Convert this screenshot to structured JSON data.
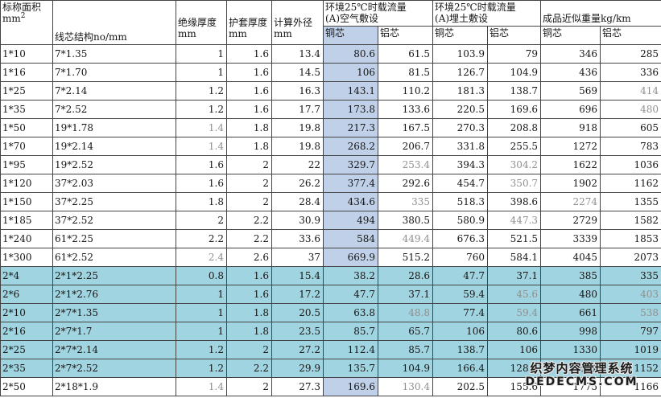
{
  "table": {
    "fields": [
      "area",
      "structure",
      "insulation",
      "sheath",
      "od",
      "air_cu",
      "air_al",
      "ground_cu",
      "ground_al",
      "wt_cu",
      "wt_al"
    ],
    "headers": {
      "area_line1": "标称面积",
      "area_unit": "mm",
      "area_sup": "2",
      "structure": "线芯结构no/mm",
      "insulation_line1": "绝缘厚度",
      "insulation_line2": "mm",
      "sheath_line1": "护套厚度",
      "sheath_line2": "mm",
      "od_line1": "计算外径",
      "od_line2": "mm",
      "group_air_line1": "环境25℃时载流量",
      "group_air_line2": "(A)空气敷设",
      "group_ground_line1": "环境25℃时载流量",
      "group_ground_line2": "(A)埋土敷设",
      "group_weight": "成品近似重量kg/km",
      "sub_copper": "铜芯",
      "sub_aluminum": "铝芯"
    },
    "rows": [
      {
        "area": "1*10",
        "structure": "7*1.35",
        "insulation": "1",
        "sheath": "1.6",
        "od": "13.4",
        "air_cu": "80.6",
        "air_al": "61.5",
        "ground_cu": "103.9",
        "ground_al": "79",
        "wt_cu": "346",
        "wt_al": "285",
        "highlight": false,
        "muted": []
      },
      {
        "area": "1*16",
        "structure": "7*1.70",
        "insulation": "1",
        "sheath": "1.6",
        "od": "14.5",
        "air_cu": "106",
        "air_al": "81.5",
        "ground_cu": "126.7",
        "ground_al": "104.9",
        "wt_cu": "436",
        "wt_al": "336",
        "highlight": false,
        "muted": []
      },
      {
        "area": "1*25",
        "structure": "7*2.14",
        "insulation": "1.2",
        "sheath": "1.6",
        "od": "16.3",
        "air_cu": "143.1",
        "air_al": "110.2",
        "ground_cu": "181.3",
        "ground_al": "138.7",
        "wt_cu": "569",
        "wt_al": "414",
        "highlight": false,
        "muted": [
          "wt_al"
        ]
      },
      {
        "area": "1*35",
        "structure": "7*2.52",
        "insulation": "1.2",
        "sheath": "1.6",
        "od": "17.7",
        "air_cu": "173.8",
        "air_al": "133.6",
        "ground_cu": "220.5",
        "ground_al": "169.6",
        "wt_cu": "696",
        "wt_al": "480",
        "highlight": false,
        "muted": [
          "wt_al"
        ]
      },
      {
        "area": "1*50",
        "structure": "19*1.78",
        "insulation": "1.4",
        "sheath": "1.8",
        "od": "19.8",
        "air_cu": "217.3",
        "air_al": "167.5",
        "ground_cu": "270.3",
        "ground_al": "208.8",
        "wt_cu": "918",
        "wt_al": "605",
        "highlight": false,
        "muted": [
          "insulation"
        ]
      },
      {
        "area": "1*70",
        "structure": "19*2.14",
        "insulation": "1.4",
        "sheath": "1.8",
        "od": "19.8",
        "air_cu": "268.2",
        "air_al": "206.7",
        "ground_cu": "331.8",
        "ground_al": "255.5",
        "wt_cu": "1272",
        "wt_al": "783",
        "highlight": false,
        "muted": [
          "insulation"
        ]
      },
      {
        "area": "1*95",
        "structure": "19*2.52",
        "insulation": "1.6",
        "sheath": "2",
        "od": "22",
        "air_cu": "329.7",
        "air_al": "253.4",
        "ground_cu": "394.3",
        "ground_al": "304.2",
        "wt_cu": "1622",
        "wt_al": "1036",
        "highlight": false,
        "muted": [
          "air_al",
          "ground_al"
        ]
      },
      {
        "area": "1*120",
        "structure": "37*2.03",
        "insulation": "1.6",
        "sheath": "2",
        "od": "26.2",
        "air_cu": "377.4",
        "air_al": "292.6",
        "ground_cu": "454.7",
        "ground_al": "350.7",
        "wt_cu": "1902",
        "wt_al": "1162",
        "highlight": false,
        "muted": [
          "ground_al"
        ]
      },
      {
        "area": "1*150",
        "structure": "37*2.25",
        "insulation": "1.8",
        "sheath": "2",
        "od": "28.4",
        "air_cu": "434.6",
        "air_al": "335",
        "ground_cu": "518.3",
        "ground_al": "398.6",
        "wt_cu": "2274",
        "wt_al": "1355",
        "highlight": false,
        "muted": [
          "air_al",
          "wt_cu"
        ]
      },
      {
        "area": "1*185",
        "structure": "37*2.52",
        "insulation": "2",
        "sheath": "2.2",
        "od": "30.9",
        "air_cu": "494",
        "air_al": "380.5",
        "ground_cu": "580.9",
        "ground_al": "447.3",
        "wt_cu": "2729",
        "wt_al": "1582",
        "highlight": false,
        "muted": [
          "ground_al"
        ]
      },
      {
        "area": "1*240",
        "structure": "61*2.25",
        "insulation": "2.2",
        "sheath": "2.2",
        "od": "33.6",
        "air_cu": "584",
        "air_al": "449.4",
        "ground_cu": "676.3",
        "ground_al": "521.5",
        "wt_cu": "3339",
        "wt_al": "1853",
        "highlight": false,
        "muted": [
          "air_al"
        ]
      },
      {
        "area": "1*300",
        "structure": "61*2.52",
        "insulation": "2.4",
        "sheath": "2.6",
        "od": "37",
        "air_cu": "669.9",
        "air_al": "515.2",
        "ground_cu": "760",
        "ground_al": "584.1",
        "wt_cu": "4045",
        "wt_al": "2073",
        "highlight": false,
        "muted": [
          "insulation"
        ]
      },
      {
        "area": "2*4",
        "structure": "2*1*2.25",
        "insulation": "0.8",
        "sheath": "1.6",
        "od": "15.4",
        "air_cu": "38.2",
        "air_al": "28.6",
        "ground_cu": "47.7",
        "ground_al": "37.1",
        "wt_cu": "385",
        "wt_al": "335",
        "highlight": true,
        "muted": []
      },
      {
        "area": "2*6",
        "structure": "2*1*2.76",
        "insulation": "1",
        "sheath": "1.6",
        "od": "17.2",
        "air_cu": "47.7",
        "air_al": "37.1",
        "ground_cu": "59.4",
        "ground_al": "45.6",
        "wt_cu": "480",
        "wt_al": "403",
        "highlight": true,
        "muted": [
          "ground_al",
          "wt_al"
        ]
      },
      {
        "area": "2*10",
        "structure": "2*7*1.35",
        "insulation": "1",
        "sheath": "1.8",
        "od": "20.5",
        "air_cu": "63.8",
        "air_al": "48.8",
        "ground_cu": "77.4",
        "ground_al": "59.4",
        "wt_cu": "661",
        "wt_al": "538",
        "highlight": true,
        "muted": [
          "air_al",
          "ground_al",
          "wt_al"
        ]
      },
      {
        "area": "2*16",
        "structure": "2*7*1.7",
        "insulation": "1",
        "sheath": "1.8",
        "od": "23.5",
        "air_cu": "85.7",
        "air_al": "65.7",
        "ground_cu": "106",
        "ground_al": "80.6",
        "wt_cu": "998",
        "wt_al": "797",
        "highlight": true,
        "muted": []
      },
      {
        "area": "2*25",
        "structure": "2*7*2.14",
        "insulation": "1.2",
        "sheath": "2",
        "od": "27.2",
        "air_cu": "112.4",
        "air_al": "85.7",
        "ground_cu": "138.7",
        "ground_al": "106",
        "wt_cu": "1330",
        "wt_al": "1019",
        "highlight": true,
        "muted": []
      },
      {
        "area": "2*35",
        "structure": "2*7*2.52",
        "insulation": "1.2",
        "sheath": "2.2",
        "od": "29.9",
        "air_cu": "135.7",
        "air_al": "104.9",
        "ground_cu": "166.4",
        "ground_al": "128.3",
        "wt_cu": "1601",
        "wt_al": "1152",
        "highlight": true,
        "muted": []
      },
      {
        "area": "2*50",
        "structure": "2*18*1.9",
        "insulation": "1.4",
        "sheath": "2",
        "od": "27.3",
        "air_cu": "169.6",
        "air_al": "130.4",
        "ground_cu": "202.5",
        "ground_al": "155.6",
        "wt_cu": "1775",
        "wt_al": "1166",
        "highlight": false,
        "muted": [
          "insulation",
          "air_al"
        ]
      }
    ]
  },
  "watermark": {
    "line1": "织梦内容管理系统",
    "line2": "DEDECMS.COM"
  },
  "colors": {
    "row_highlight": "#a0d4e0",
    "column_highlight": "#bfd0e8",
    "grid_line": "#444444",
    "muted_text": "#8f8f8f",
    "text": "#161616"
  }
}
